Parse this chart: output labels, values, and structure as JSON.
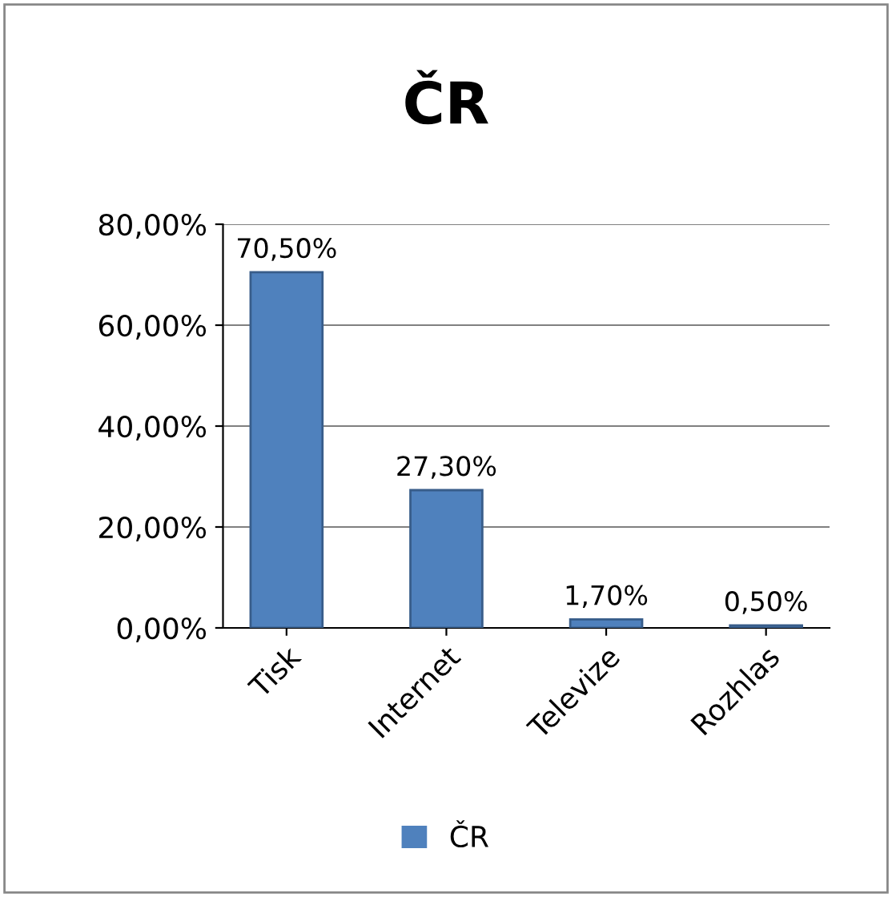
{
  "chart_data": {
    "type": "bar",
    "title": "ČR",
    "categories": [
      "Tisk",
      "Internet",
      "Televize",
      "Rozhlas"
    ],
    "series": [
      {
        "name": "ČR",
        "color": "#4f81bd",
        "values": [
          70.5,
          27.3,
          1.7,
          0.5
        ],
        "value_labels": [
          "70,50%",
          "27,30%",
          "1,70%",
          "0,50%"
        ]
      }
    ],
    "ylim": [
      0,
      80
    ],
    "yticks": [
      {
        "value": 0,
        "label": "0,00%"
      },
      {
        "value": 20,
        "label": "20,00%"
      },
      {
        "value": 40,
        "label": "40,00%"
      },
      {
        "value": 60,
        "label": "60,00%"
      },
      {
        "value": 80,
        "label": "80,00%"
      }
    ],
    "grid": "y",
    "legend": "bottom"
  }
}
